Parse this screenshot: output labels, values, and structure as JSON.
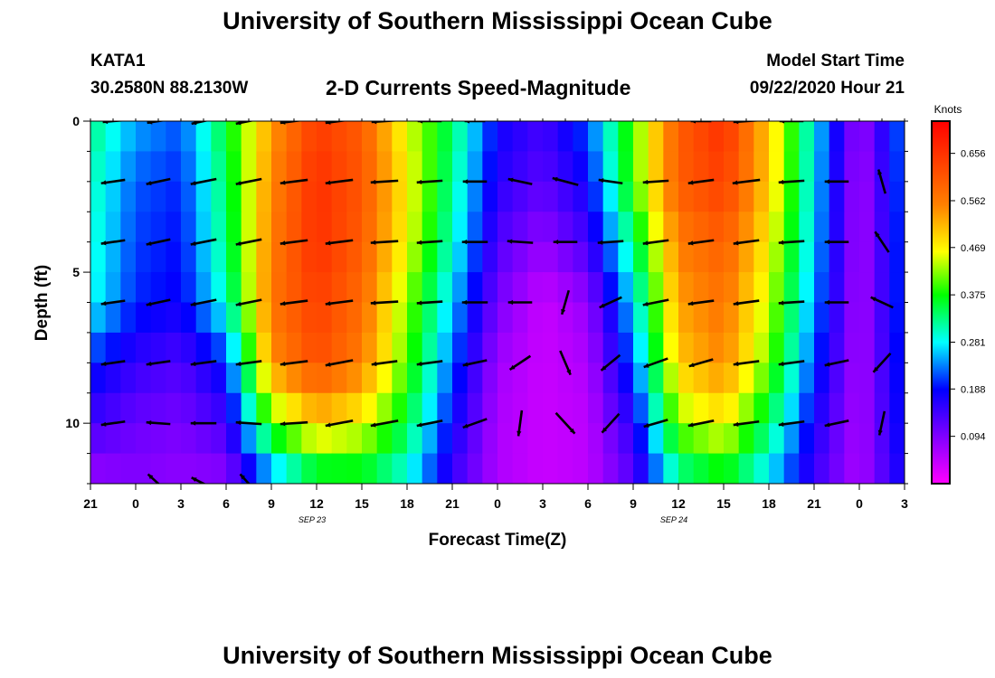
{
  "header": {
    "title": "University of Southern Mississippi Ocean Cube",
    "station_id": "KATA1",
    "coordinates": "30.2580N 88.2130W",
    "chart_title": "2-D Currents Speed-Magnitude",
    "model_start_label": "Model Start Time",
    "model_start_value": "09/22/2020 Hour 21",
    "footer_title": "University of Southern Mississippi Ocean Cube"
  },
  "chart_data": {
    "type": "heatmap",
    "title": "2-D Currents Speed-Magnitude",
    "xlabel": "Forecast Time(Z)",
    "ylabel": "Depth (ft)",
    "x_tick_labels": [
      "21",
      "0",
      "3",
      "6",
      "9",
      "12",
      "15",
      "18",
      "21",
      "0",
      "3",
      "6",
      "9",
      "12",
      "15",
      "18",
      "21",
      "0",
      "3"
    ],
    "date_labels": [
      {
        "label": "SEP 23",
        "after_tick": 5
      },
      {
        "label": "SEP 24",
        "after_tick": 13
      }
    ],
    "x_range_hours": [
      0,
      54
    ],
    "y_ticks": [
      0,
      5,
      10
    ],
    "y_range_ft": [
      0,
      12
    ],
    "colorbar": {
      "unit": "Knots",
      "tick_labels": [
        "0.656",
        "0.562",
        "0.469",
        "0.375",
        "0.281",
        "0.188",
        "0.094"
      ],
      "tick_values": [
        0.656,
        0.562,
        0.469,
        0.375,
        0.281,
        0.188,
        0.094
      ],
      "range": [
        0.0,
        0.72
      ]
    },
    "columns_hours": [
      0,
      3,
      6,
      9,
      12,
      15,
      18,
      21,
      24,
      27,
      30,
      33,
      36,
      39,
      42,
      45,
      48,
      51,
      54
    ],
    "rows_depth_ft": [
      0,
      2,
      4,
      6,
      8,
      10,
      12
    ],
    "speed_knots": [
      [
        0.33,
        0.25,
        0.22,
        0.36,
        0.53,
        0.64,
        0.6,
        0.45,
        0.34,
        0.18,
        0.14,
        0.22,
        0.4,
        0.6,
        0.66,
        0.5,
        0.28,
        0.07,
        0.24
      ],
      [
        0.31,
        0.22,
        0.2,
        0.34,
        0.55,
        0.66,
        0.61,
        0.47,
        0.32,
        0.16,
        0.12,
        0.18,
        0.4,
        0.6,
        0.64,
        0.5,
        0.27,
        0.06,
        0.23
      ],
      [
        0.3,
        0.21,
        0.19,
        0.33,
        0.56,
        0.66,
        0.6,
        0.46,
        0.3,
        0.13,
        0.08,
        0.14,
        0.33,
        0.56,
        0.6,
        0.47,
        0.26,
        0.06,
        0.22
      ],
      [
        0.29,
        0.2,
        0.18,
        0.3,
        0.57,
        0.64,
        0.58,
        0.42,
        0.26,
        0.1,
        0.04,
        0.08,
        0.27,
        0.53,
        0.57,
        0.44,
        0.24,
        0.06,
        0.22
      ],
      [
        0.2,
        0.15,
        0.13,
        0.2,
        0.54,
        0.62,
        0.56,
        0.4,
        0.22,
        0.07,
        0.04,
        0.06,
        0.22,
        0.5,
        0.55,
        0.41,
        0.21,
        0.06,
        0.21
      ],
      [
        0.14,
        0.11,
        0.1,
        0.14,
        0.4,
        0.5,
        0.46,
        0.35,
        0.18,
        0.06,
        0.04,
        0.05,
        0.16,
        0.42,
        0.47,
        0.34,
        0.17,
        0.06,
        0.2
      ],
      [
        0.07,
        0.09,
        0.08,
        0.08,
        0.22,
        0.32,
        0.34,
        0.28,
        0.14,
        0.06,
        0.04,
        0.05,
        0.12,
        0.3,
        0.35,
        0.26,
        0.14,
        0.06,
        0.18
      ]
    ],
    "vectors": [
      {
        "t": 0,
        "d": 0,
        "dx": -12,
        "dy": 1
      },
      {
        "t": 3,
        "d": 0,
        "dx": -13,
        "dy": 2
      },
      {
        "t": 6,
        "d": 0,
        "dx": -14,
        "dy": 3
      },
      {
        "t": 9,
        "d": 0,
        "dx": -15,
        "dy": 3
      },
      {
        "t": 12,
        "d": 0,
        "dx": -16,
        "dy": 2
      },
      {
        "t": 15,
        "d": 0,
        "dx": -16,
        "dy": 2
      },
      {
        "t": 18,
        "d": 0,
        "dx": -15,
        "dy": 1
      },
      {
        "t": 21,
        "d": 0,
        "dx": -14,
        "dy": 0
      },
      {
        "t": 24,
        "d": 0,
        "dx": -12,
        "dy": 0
      },
      {
        "t": 39,
        "d": 0,
        "dx": -12,
        "dy": 0
      },
      {
        "t": 42,
        "d": 0,
        "dx": -15,
        "dy": 1
      },
      {
        "t": 45,
        "d": 0,
        "dx": -14,
        "dy": 0
      },
      {
        "t": 0,
        "d": 2,
        "dx": -14,
        "dy": 2
      },
      {
        "t": 3,
        "d": 2,
        "dx": -14,
        "dy": 3
      },
      {
        "t": 6,
        "d": 2,
        "dx": -15,
        "dy": 3
      },
      {
        "t": 9,
        "d": 2,
        "dx": -15,
        "dy": 3
      },
      {
        "t": 12,
        "d": 2,
        "dx": -16,
        "dy": 2
      },
      {
        "t": 15,
        "d": 2,
        "dx": -16,
        "dy": 2
      },
      {
        "t": 18,
        "d": 2,
        "dx": -16,
        "dy": 1
      },
      {
        "t": 21,
        "d": 2,
        "dx": -15,
        "dy": 1
      },
      {
        "t": 24,
        "d": 2,
        "dx": -14,
        "dy": 0
      },
      {
        "t": 27,
        "d": 2,
        "dx": -14,
        "dy": -3
      },
      {
        "t": 30,
        "d": 2,
        "dx": -15,
        "dy": -4
      },
      {
        "t": 33,
        "d": 2,
        "dx": -14,
        "dy": -2
      },
      {
        "t": 36,
        "d": 2,
        "dx": -15,
        "dy": 1
      },
      {
        "t": 39,
        "d": 2,
        "dx": -15,
        "dy": 2
      },
      {
        "t": 42,
        "d": 2,
        "dx": -16,
        "dy": 2
      },
      {
        "t": 45,
        "d": 2,
        "dx": -15,
        "dy": 1
      },
      {
        "t": 48,
        "d": 2,
        "dx": -14,
        "dy": 0
      },
      {
        "t": 51,
        "d": 2,
        "dx": -4,
        "dy": -14
      },
      {
        "t": 0,
        "d": 4,
        "dx": -14,
        "dy": 2
      },
      {
        "t": 3,
        "d": 4,
        "dx": -14,
        "dy": 3
      },
      {
        "t": 6,
        "d": 4,
        "dx": -15,
        "dy": 3
      },
      {
        "t": 9,
        "d": 4,
        "dx": -15,
        "dy": 3
      },
      {
        "t": 12,
        "d": 4,
        "dx": -16,
        "dy": 2
      },
      {
        "t": 15,
        "d": 4,
        "dx": -16,
        "dy": 2
      },
      {
        "t": 18,
        "d": 4,
        "dx": -16,
        "dy": 1
      },
      {
        "t": 21,
        "d": 4,
        "dx": -15,
        "dy": 1
      },
      {
        "t": 24,
        "d": 4,
        "dx": -15,
        "dy": 0
      },
      {
        "t": 27,
        "d": 4,
        "dx": -15,
        "dy": -1
      },
      {
        "t": 30,
        "d": 4,
        "dx": -14,
        "dy": 0
      },
      {
        "t": 33,
        "d": 4,
        "dx": -15,
        "dy": 1
      },
      {
        "t": 36,
        "d": 4,
        "dx": -15,
        "dy": 2
      },
      {
        "t": 39,
        "d": 4,
        "dx": -15,
        "dy": 2
      },
      {
        "t": 42,
        "d": 4,
        "dx": -15,
        "dy": 2
      },
      {
        "t": 45,
        "d": 4,
        "dx": -15,
        "dy": 1
      },
      {
        "t": 48,
        "d": 4,
        "dx": -14,
        "dy": 0
      },
      {
        "t": 51,
        "d": 4,
        "dx": -8,
        "dy": -12
      },
      {
        "t": 0,
        "d": 6,
        "dx": -14,
        "dy": 2
      },
      {
        "t": 3,
        "d": 6,
        "dx": -14,
        "dy": 3
      },
      {
        "t": 6,
        "d": 6,
        "dx": -15,
        "dy": 3
      },
      {
        "t": 9,
        "d": 6,
        "dx": -15,
        "dy": 3
      },
      {
        "t": 12,
        "d": 6,
        "dx": -16,
        "dy": 2
      },
      {
        "t": 15,
        "d": 6,
        "dx": -16,
        "dy": 2
      },
      {
        "t": 18,
        "d": 6,
        "dx": -16,
        "dy": 1
      },
      {
        "t": 21,
        "d": 6,
        "dx": -15,
        "dy": 1
      },
      {
        "t": 24,
        "d": 6,
        "dx": -15,
        "dy": 0
      },
      {
        "t": 27,
        "d": 6,
        "dx": -14,
        "dy": 0
      },
      {
        "t": 30,
        "d": 6,
        "dx": -4,
        "dy": 14
      },
      {
        "t": 33,
        "d": 6,
        "dx": -13,
        "dy": 6
      },
      {
        "t": 36,
        "d": 6,
        "dx": -15,
        "dy": 3
      },
      {
        "t": 39,
        "d": 6,
        "dx": -15,
        "dy": 2
      },
      {
        "t": 42,
        "d": 6,
        "dx": -15,
        "dy": 2
      },
      {
        "t": 45,
        "d": 6,
        "dx": -15,
        "dy": 1
      },
      {
        "t": 48,
        "d": 6,
        "dx": -14,
        "dy": 0
      },
      {
        "t": 51,
        "d": 6,
        "dx": -13,
        "dy": -6
      },
      {
        "t": 0,
        "d": 8,
        "dx": -14,
        "dy": 2
      },
      {
        "t": 3,
        "d": 8,
        "dx": -14,
        "dy": 2
      },
      {
        "t": 6,
        "d": 8,
        "dx": -15,
        "dy": 2
      },
      {
        "t": 9,
        "d": 8,
        "dx": -15,
        "dy": 2
      },
      {
        "t": 12,
        "d": 8,
        "dx": -16,
        "dy": 2
      },
      {
        "t": 15,
        "d": 8,
        "dx": -16,
        "dy": 3
      },
      {
        "t": 18,
        "d": 8,
        "dx": -15,
        "dy": 2
      },
      {
        "t": 21,
        "d": 8,
        "dx": -15,
        "dy": 2
      },
      {
        "t": 24,
        "d": 8,
        "dx": -14,
        "dy": 3
      },
      {
        "t": 27,
        "d": 8,
        "dx": -12,
        "dy": 8
      },
      {
        "t": 30,
        "d": 8,
        "dx": 6,
        "dy": 14
      },
      {
        "t": 33,
        "d": 8,
        "dx": -11,
        "dy": 9
      },
      {
        "t": 36,
        "d": 8,
        "dx": -14,
        "dy": 5
      },
      {
        "t": 39,
        "d": 8,
        "dx": -14,
        "dy": 4
      },
      {
        "t": 42,
        "d": 8,
        "dx": -15,
        "dy": 2
      },
      {
        "t": 45,
        "d": 8,
        "dx": -15,
        "dy": 2
      },
      {
        "t": 48,
        "d": 8,
        "dx": -14,
        "dy": 3
      },
      {
        "t": 51,
        "d": 8,
        "dx": -10,
        "dy": 11
      },
      {
        "t": 0,
        "d": 10,
        "dx": -14,
        "dy": 2
      },
      {
        "t": 3,
        "d": 10,
        "dx": -14,
        "dy": -1
      },
      {
        "t": 6,
        "d": 10,
        "dx": -15,
        "dy": 0
      },
      {
        "t": 9,
        "d": 10,
        "dx": -15,
        "dy": -1
      },
      {
        "t": 12,
        "d": 10,
        "dx": -16,
        "dy": 1
      },
      {
        "t": 15,
        "d": 10,
        "dx": -16,
        "dy": 3
      },
      {
        "t": 18,
        "d": 10,
        "dx": -16,
        "dy": 3
      },
      {
        "t": 21,
        "d": 10,
        "dx": -15,
        "dy": 3
      },
      {
        "t": 24,
        "d": 10,
        "dx": -14,
        "dy": 5
      },
      {
        "t": 27,
        "d": 10,
        "dx": -2,
        "dy": 15
      },
      {
        "t": 30,
        "d": 10,
        "dx": 11,
        "dy": 12
      },
      {
        "t": 33,
        "d": 10,
        "dx": -10,
        "dy": 11
      },
      {
        "t": 36,
        "d": 10,
        "dx": -14,
        "dy": 4
      },
      {
        "t": 39,
        "d": 10,
        "dx": -15,
        "dy": 3
      },
      {
        "t": 42,
        "d": 10,
        "dx": -15,
        "dy": 2
      },
      {
        "t": 45,
        "d": 10,
        "dx": -15,
        "dy": 2
      },
      {
        "t": 48,
        "d": 10,
        "dx": -14,
        "dy": 3
      },
      {
        "t": 51,
        "d": 10,
        "dx": -3,
        "dy": 14
      },
      {
        "t": 3,
        "d": 12,
        "dx": -12,
        "dy": -11
      },
      {
        "t": 6,
        "d": 12,
        "dx": -14,
        "dy": -7
      },
      {
        "t": 9,
        "d": 12,
        "dx": -10,
        "dy": -11
      }
    ]
  }
}
